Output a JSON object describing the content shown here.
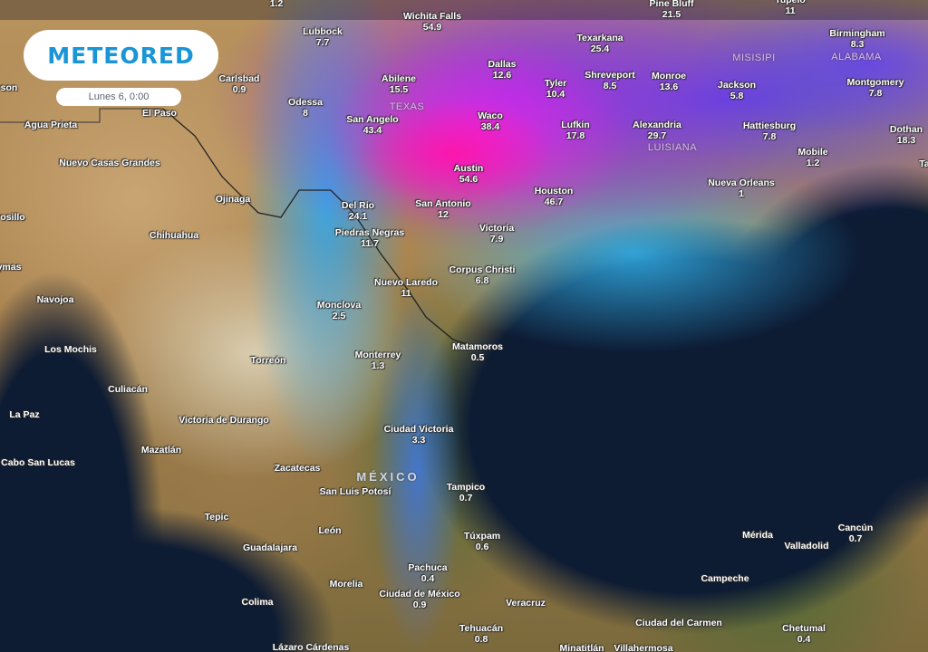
{
  "brand": {
    "logo_text": "METEORED",
    "accent": "#1a95d8"
  },
  "timestamp": "Lunes 6, 0:00",
  "legend_colors": {
    "light": "#32b4f0",
    "medium": "#503cf0",
    "heavy": "#9628f0",
    "very_heavy": "#ff14aa"
  },
  "states": [
    "TEXAS",
    "LUISIANA",
    "MISISIPI",
    "ALABAMA"
  ],
  "country": "MÉXICO",
  "cities": [
    {
      "name": "",
      "value": "1.2"
    },
    {
      "name": "Wichita Falls",
      "value": "54.9"
    },
    {
      "name": "Pine Bluff",
      "value": "21.5"
    },
    {
      "name": "Tupelo",
      "value": "11"
    },
    {
      "name": "Lubbock",
      "value": "7.7"
    },
    {
      "name": "Texarkana",
      "value": "25.4"
    },
    {
      "name": "Birmingham",
      "value": "8.3"
    },
    {
      "name": "Carlsbad",
      "value": "0.9"
    },
    {
      "name": "Dallas",
      "value": "12.6"
    },
    {
      "name": "Abilene",
      "value": "15.5"
    },
    {
      "name": "Shreveport",
      "value": "8.5"
    },
    {
      "name": "Tyler",
      "value": "10.4"
    },
    {
      "name": "Monroe",
      "value": "13.6"
    },
    {
      "name": "Jackson",
      "value": "5.8"
    },
    {
      "name": "Montgomery",
      "value": "7.8"
    },
    {
      "name": "son",
      "value": ""
    },
    {
      "name": "Odessa",
      "value": "8"
    },
    {
      "name": "El Paso",
      "value": ""
    },
    {
      "name": "San Angelo",
      "value": "43.4"
    },
    {
      "name": "Waco",
      "value": "38.4"
    },
    {
      "name": "Lufkin",
      "value": "17.8"
    },
    {
      "name": "Alexandria",
      "value": "29.7"
    },
    {
      "name": "Hattiesburg",
      "value": "7.8"
    },
    {
      "name": "Dothan",
      "value": "18.3"
    },
    {
      "name": "Agua Prieta",
      "value": ""
    },
    {
      "name": "Mobile",
      "value": "1.2"
    },
    {
      "name": "Nuevo Casas Grandes",
      "value": ""
    },
    {
      "name": "Austin",
      "value": "54.6"
    },
    {
      "name": "Ta",
      "value": ""
    },
    {
      "name": "Nueva Orleans",
      "value": "1"
    },
    {
      "name": "Houston",
      "value": "46.7"
    },
    {
      "name": "Ojinaga",
      "value": ""
    },
    {
      "name": "Del Rio",
      "value": "24.1"
    },
    {
      "name": "San Antonio",
      "value": "12"
    },
    {
      "name": "osillo",
      "value": ""
    },
    {
      "name": "Victoria",
      "value": "7.9"
    },
    {
      "name": "Chihuahua",
      "value": ""
    },
    {
      "name": "Piedras Negras",
      "value": "11.7"
    },
    {
      "name": "ymas",
      "value": ""
    },
    {
      "name": "Corpus Christi",
      "value": "6.8"
    },
    {
      "name": "Nuevo Laredo",
      "value": "11"
    },
    {
      "name": "Navojoa",
      "value": ""
    },
    {
      "name": "Monclova",
      "value": "2.5"
    },
    {
      "name": "Matamoros",
      "value": "0.5"
    },
    {
      "name": "Los Mochis",
      "value": ""
    },
    {
      "name": "Monterrey",
      "value": "1.3"
    },
    {
      "name": "Torreón",
      "value": ""
    },
    {
      "name": "Culiacán",
      "value": ""
    },
    {
      "name": "La Paz",
      "value": ""
    },
    {
      "name": "Victoria de Durango",
      "value": ""
    },
    {
      "name": "Ciudad Victoria",
      "value": "3.3"
    },
    {
      "name": "Mazatlán",
      "value": ""
    },
    {
      "name": "Cabo San Lucas",
      "value": ""
    },
    {
      "name": "Zacatecas",
      "value": ""
    },
    {
      "name": "San Luis Potosí",
      "value": ""
    },
    {
      "name": "Tampico",
      "value": "0.7"
    },
    {
      "name": "Tepic",
      "value": ""
    },
    {
      "name": "León",
      "value": ""
    },
    {
      "name": "Cancún",
      "value": "0.7"
    },
    {
      "name": "Mérida",
      "value": ""
    },
    {
      "name": "Túxpam",
      "value": "0.6"
    },
    {
      "name": "Valladolid",
      "value": ""
    },
    {
      "name": "Guadalajara",
      "value": ""
    },
    {
      "name": "Pachuca",
      "value": "0.4"
    },
    {
      "name": "Campeche",
      "value": ""
    },
    {
      "name": "Morelia",
      "value": ""
    },
    {
      "name": "Ciudad de México",
      "value": "0.9"
    },
    {
      "name": "Colima",
      "value": ""
    },
    {
      "name": "Veracruz",
      "value": ""
    },
    {
      "name": "Ciudad del Carmen",
      "value": ""
    },
    {
      "name": "Tehuacán",
      "value": "0.8"
    },
    {
      "name": "Chetumal",
      "value": "0.4"
    },
    {
      "name": "Lázaro Cárdenas",
      "value": ""
    },
    {
      "name": "Minatitlán",
      "value": ""
    },
    {
      "name": "Villahermosa",
      "value": ""
    }
  ]
}
